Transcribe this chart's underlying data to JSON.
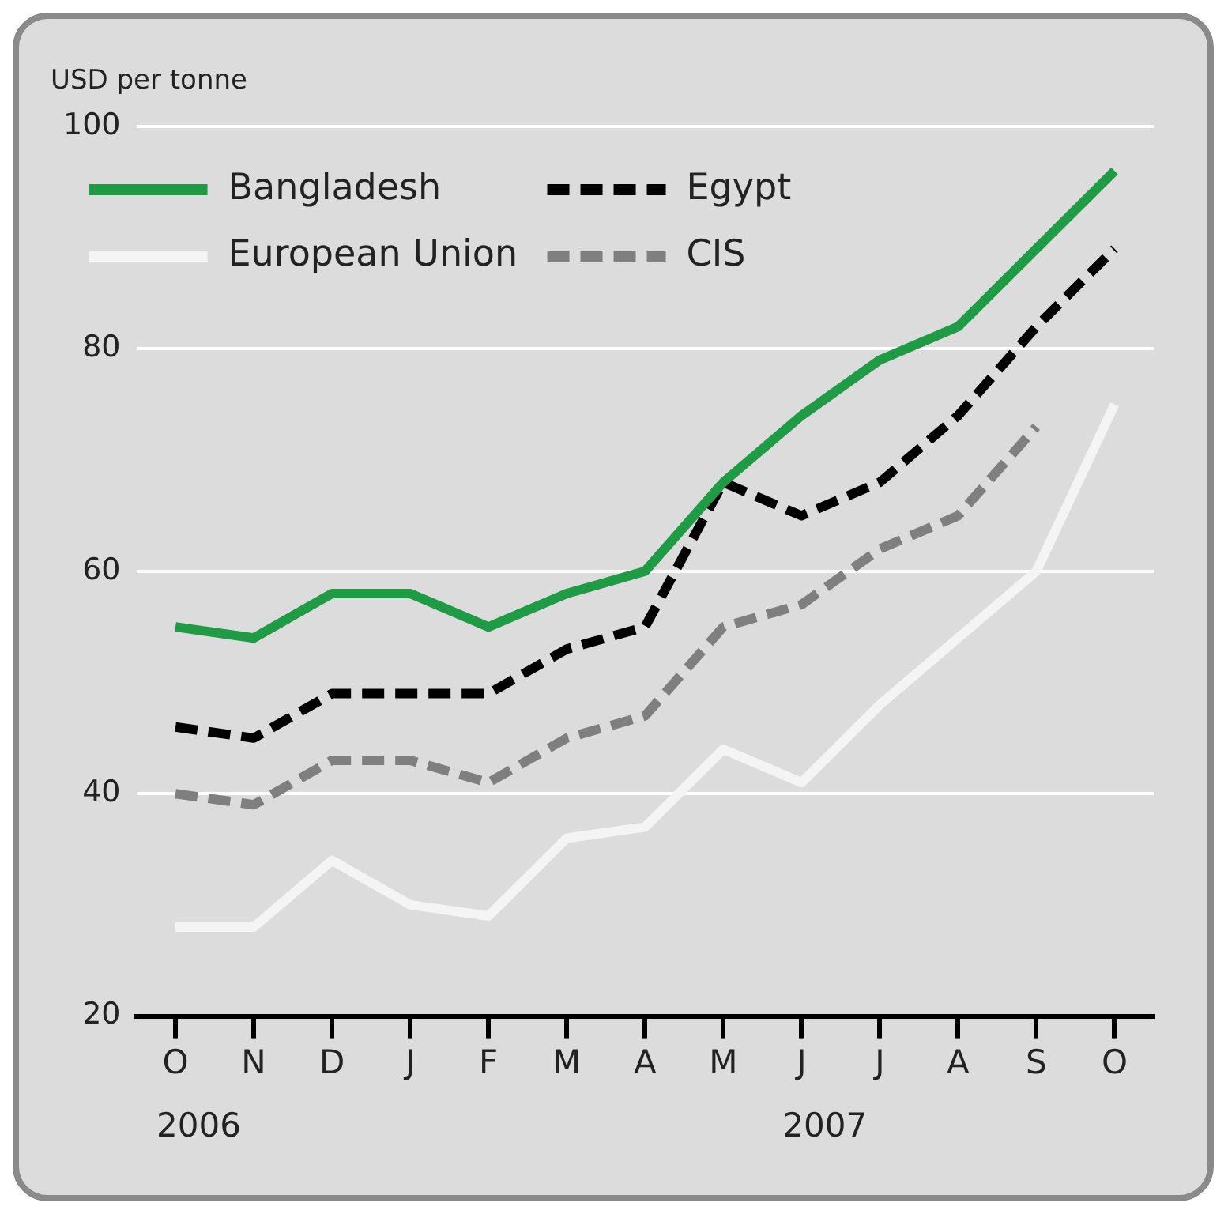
{
  "chart_data": {
    "type": "line",
    "ylabel": "USD per tonne",
    "categories": [
      "O",
      "N",
      "D",
      "J",
      "F",
      "M",
      "A",
      "M",
      "J",
      "J",
      "A",
      "S",
      "O"
    ],
    "series": [
      {
        "name": "Bangladesh",
        "color": "#1f9a45",
        "line_style": "solid",
        "values": [
          55,
          54,
          58,
          58,
          55,
          58,
          60,
          68,
          74,
          79,
          82,
          89,
          96
        ]
      },
      {
        "name": "Egypt",
        "color": "#000000",
        "line_style": "dashed",
        "values": [
          46,
          45,
          49,
          49,
          49,
          53,
          55,
          68,
          65,
          68,
          74,
          82,
          89
        ]
      },
      {
        "name": "European Union",
        "color": "#f4f4f4",
        "line_style": "solid",
        "values": [
          28,
          28,
          34,
          30,
          29,
          36,
          37,
          44,
          41,
          48,
          54,
          60,
          75
        ]
      },
      {
        "name": "CIS",
        "color": "#7f7f7f",
        "line_style": "dashed",
        "values": [
          40,
          39,
          43,
          43,
          41,
          45,
          47,
          55,
          57,
          62,
          65,
          73,
          null
        ]
      }
    ],
    "ylim": [
      20,
      100
    ],
    "yticks": [
      20,
      40,
      60,
      80,
      100
    ],
    "grid": "y",
    "legend": "top left",
    "marker": "none",
    "annotations": [
      "2006",
      "2007"
    ]
  }
}
